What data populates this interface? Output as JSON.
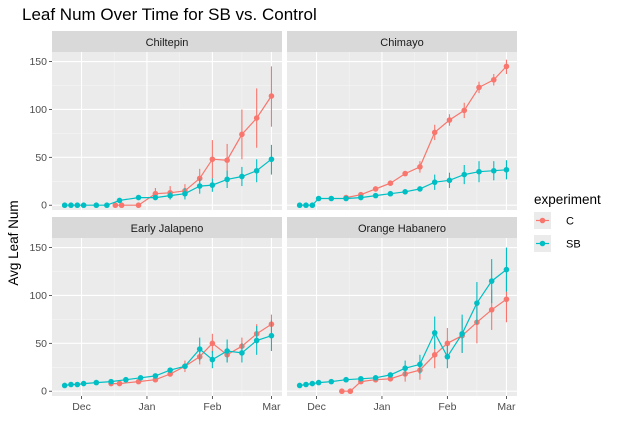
{
  "chart_data": {
    "type": "line",
    "title": "Leaf Num Over Time for SB vs. Control",
    "xlabel": "",
    "ylabel": "Avg Leaf Num",
    "x_ticks": [
      "Dec",
      "Jan",
      "Feb",
      "Mar"
    ],
    "y_ticks": [
      0,
      50,
      100,
      150
    ],
    "ylim": [
      -5,
      160
    ],
    "grid": true,
    "legend": {
      "title": "experiment",
      "position": "right",
      "entries": [
        {
          "label": "C",
          "color": "#F8766D"
        },
        {
          "label": "SB",
          "color": "#00BFC4"
        }
      ]
    },
    "facets": [
      {
        "name": "Chiltepin",
        "series": [
          {
            "name": "C",
            "color": "#F8766D",
            "points": [
              {
                "x": "Dec 17",
                "y": 0
              },
              {
                "x": "Dec 20",
                "y": 0
              },
              {
                "x": "Dec 28",
                "y": 0
              },
              {
                "x": "Jan 5",
                "y": 12,
                "lo": 6,
                "hi": 18
              },
              {
                "x": "Jan 12",
                "y": 13,
                "lo": 6,
                "hi": 20
              },
              {
                "x": "Jan 19",
                "y": 15,
                "lo": 8,
                "hi": 22
              },
              {
                "x": "Jan 26",
                "y": 28,
                "lo": 18,
                "hi": 38
              },
              {
                "x": "Feb 1",
                "y": 48,
                "lo": 28,
                "hi": 68
              },
              {
                "x": "Feb 8",
                "y": 47,
                "lo": 30,
                "hi": 64
              },
              {
                "x": "Feb 15",
                "y": 74,
                "lo": 48,
                "hi": 100
              },
              {
                "x": "Feb 22",
                "y": 91,
                "lo": 60,
                "hi": 122
              },
              {
                "x": "Mar 1",
                "y": 114,
                "lo": 82,
                "hi": 145
              }
            ]
          },
          {
            "name": "SB",
            "color": "#00BFC4",
            "points": [
              {
                "x": "Nov 23",
                "y": 0
              },
              {
                "x": "Nov 26",
                "y": 0
              },
              {
                "x": "Nov 29",
                "y": 0
              },
              {
                "x": "Dec 2",
                "y": 0
              },
              {
                "x": "Dec 8",
                "y": 0
              },
              {
                "x": "Dec 13",
                "y": 0
              },
              {
                "x": "Dec 19",
                "y": 5
              },
              {
                "x": "Dec 28",
                "y": 8
              },
              {
                "x": "Jan 5",
                "y": 8
              },
              {
                "x": "Jan 12",
                "y": 10,
                "lo": 6,
                "hi": 14
              },
              {
                "x": "Jan 19",
                "y": 12,
                "lo": 6,
                "hi": 18
              },
              {
                "x": "Jan 26",
                "y": 20,
                "lo": 12,
                "hi": 28
              },
              {
                "x": "Feb 1",
                "y": 21,
                "lo": 14,
                "hi": 28
              },
              {
                "x": "Feb 8",
                "y": 27,
                "lo": 18,
                "hi": 36
              },
              {
                "x": "Feb 15",
                "y": 30,
                "lo": 20,
                "hi": 40
              },
              {
                "x": "Feb 22",
                "y": 36,
                "lo": 24,
                "hi": 48
              },
              {
                "x": "Mar 1",
                "y": 48,
                "lo": 32,
                "hi": 63
              }
            ]
          }
        ]
      },
      {
        "name": "Chimayo",
        "series": [
          {
            "name": "C",
            "color": "#F8766D",
            "points": [
              {
                "x": "Dec 15",
                "y": 8
              },
              {
                "x": "Dec 22",
                "y": 11
              },
              {
                "x": "Dec 29",
                "y": 17
              },
              {
                "x": "Jan 5",
                "y": 23
              },
              {
                "x": "Jan 12",
                "y": 33
              },
              {
                "x": "Jan 19",
                "y": 40,
                "lo": 34,
                "hi": 46
              },
              {
                "x": "Jan 26",
                "y": 76,
                "lo": 68,
                "hi": 84
              },
              {
                "x": "Feb 2",
                "y": 89,
                "lo": 83,
                "hi": 95
              },
              {
                "x": "Feb 9",
                "y": 99,
                "lo": 91,
                "hi": 107
              },
              {
                "x": "Feb 16",
                "y": 123,
                "lo": 117,
                "hi": 129
              },
              {
                "x": "Feb 23",
                "y": 131,
                "lo": 125,
                "hi": 137
              },
              {
                "x": "Mar 1",
                "y": 145,
                "lo": 137,
                "hi": 152
              }
            ]
          },
          {
            "name": "SB",
            "color": "#00BFC4",
            "points": [
              {
                "x": "Nov 23",
                "y": 0
              },
              {
                "x": "Nov 26",
                "y": 0
              },
              {
                "x": "Nov 29",
                "y": 0
              },
              {
                "x": "Dec 2",
                "y": 7
              },
              {
                "x": "Dec 8",
                "y": 7
              },
              {
                "x": "Dec 15",
                "y": 7
              },
              {
                "x": "Dec 22",
                "y": 8
              },
              {
                "x": "Dec 29",
                "y": 10
              },
              {
                "x": "Jan 5",
                "y": 12
              },
              {
                "x": "Jan 12",
                "y": 14
              },
              {
                "x": "Jan 19",
                "y": 17
              },
              {
                "x": "Jan 26",
                "y": 24,
                "lo": 16,
                "hi": 32
              },
              {
                "x": "Feb 2",
                "y": 26,
                "lo": 18,
                "hi": 34
              },
              {
                "x": "Feb 9",
                "y": 32,
                "lo": 22,
                "hi": 42
              },
              {
                "x": "Feb 16",
                "y": 35,
                "lo": 24,
                "hi": 46
              },
              {
                "x": "Feb 23",
                "y": 36,
                "lo": 26,
                "hi": 46
              },
              {
                "x": "Mar 1",
                "y": 37,
                "lo": 27,
                "hi": 47
              }
            ]
          }
        ]
      },
      {
        "name": "Early Jalapeno",
        "series": [
          {
            "name": "C",
            "color": "#F8766D",
            "points": [
              {
                "x": "Dec 15",
                "y": 8
              },
              {
                "x": "Dec 19",
                "y": 8
              },
              {
                "x": "Dec 28",
                "y": 10
              },
              {
                "x": "Jan 5",
                "y": 12
              },
              {
                "x": "Jan 12",
                "y": 18
              },
              {
                "x": "Jan 19",
                "y": 26,
                "lo": 20,
                "hi": 32
              },
              {
                "x": "Jan 26",
                "y": 36,
                "lo": 28,
                "hi": 44
              },
              {
                "x": "Feb 1",
                "y": 50,
                "lo": 40,
                "hi": 60
              },
              {
                "x": "Feb 8",
                "y": 38,
                "lo": 30,
                "hi": 46
              },
              {
                "x": "Feb 15",
                "y": 47,
                "lo": 38,
                "hi": 56
              },
              {
                "x": "Feb 22",
                "y": 60,
                "lo": 50,
                "hi": 70
              },
              {
                "x": "Mar 1",
                "y": 70,
                "lo": 60,
                "hi": 80
              }
            ]
          },
          {
            "name": "SB",
            "color": "#00BFC4",
            "points": [
              {
                "x": "Nov 23",
                "y": 6
              },
              {
                "x": "Nov 26",
                "y": 7
              },
              {
                "x": "Nov 29",
                "y": 7
              },
              {
                "x": "Dec 2",
                "y": 8
              },
              {
                "x": "Dec 8",
                "y": 9
              },
              {
                "x": "Dec 15",
                "y": 10
              },
              {
                "x": "Dec 22",
                "y": 12
              },
              {
                "x": "Dec 29",
                "y": 14
              },
              {
                "x": "Jan 5",
                "y": 16
              },
              {
                "x": "Jan 12",
                "y": 22
              },
              {
                "x": "Jan 19",
                "y": 26
              },
              {
                "x": "Jan 26",
                "y": 44,
                "lo": 32,
                "hi": 56
              },
              {
                "x": "Feb 1",
                "y": 33,
                "lo": 24,
                "hi": 42
              },
              {
                "x": "Feb 8",
                "y": 42,
                "lo": 30,
                "hi": 54
              },
              {
                "x": "Feb 15",
                "y": 40,
                "lo": 30,
                "hi": 50
              },
              {
                "x": "Feb 22",
                "y": 53,
                "lo": 38,
                "hi": 68
              },
              {
                "x": "Mar 1",
                "y": 58,
                "lo": 42,
                "hi": 74
              }
            ]
          }
        ]
      },
      {
        "name": "Orange Habanero",
        "series": [
          {
            "name": "C",
            "color": "#F8766D",
            "points": [
              {
                "x": "Dec 13",
                "y": 0
              },
              {
                "x": "Dec 17",
                "y": 0
              },
              {
                "x": "Dec 22",
                "y": 10
              },
              {
                "x": "Dec 29",
                "y": 12
              },
              {
                "x": "Jan 5",
                "y": 13
              },
              {
                "x": "Jan 12",
                "y": 18,
                "lo": 10,
                "hi": 26
              },
              {
                "x": "Jan 19",
                "y": 22,
                "lo": 12,
                "hi": 32
              },
              {
                "x": "Jan 26",
                "y": 38,
                "lo": 24,
                "hi": 52
              },
              {
                "x": "Feb 1",
                "y": 50,
                "lo": 34,
                "hi": 66
              },
              {
                "x": "Feb 8",
                "y": 58,
                "lo": 40,
                "hi": 76
              },
              {
                "x": "Feb 15",
                "y": 72,
                "lo": 50,
                "hi": 94
              },
              {
                "x": "Feb 22",
                "y": 85,
                "lo": 64,
                "hi": 106
              },
              {
                "x": "Mar 1",
                "y": 96,
                "lo": 72,
                "hi": 120
              }
            ]
          },
          {
            "name": "SB",
            "color": "#00BFC4",
            "points": [
              {
                "x": "Nov 23",
                "y": 6
              },
              {
                "x": "Nov 26",
                "y": 7
              },
              {
                "x": "Nov 29",
                "y": 8
              },
              {
                "x": "Dec 2",
                "y": 9
              },
              {
                "x": "Dec 8",
                "y": 10
              },
              {
                "x": "Dec 15",
                "y": 12
              },
              {
                "x": "Dec 22",
                "y": 13
              },
              {
                "x": "Dec 29",
                "y": 14
              },
              {
                "x": "Jan 5",
                "y": 17
              },
              {
                "x": "Jan 12",
                "y": 24,
                "lo": 16,
                "hi": 32
              },
              {
                "x": "Jan 19",
                "y": 28,
                "lo": 18,
                "hi": 38
              },
              {
                "x": "Jan 26",
                "y": 61,
                "lo": 44,
                "hi": 78
              },
              {
                "x": "Feb 1",
                "y": 36,
                "lo": 24,
                "hi": 48
              },
              {
                "x": "Feb 8",
                "y": 60,
                "lo": 40,
                "hi": 80
              },
              {
                "x": "Feb 15",
                "y": 92,
                "lo": 70,
                "hi": 114
              },
              {
                "x": "Feb 22",
                "y": 115,
                "lo": 92,
                "hi": 138
              },
              {
                "x": "Mar 1",
                "y": 127,
                "lo": 104,
                "hi": 150
              }
            ]
          }
        ]
      }
    ]
  }
}
